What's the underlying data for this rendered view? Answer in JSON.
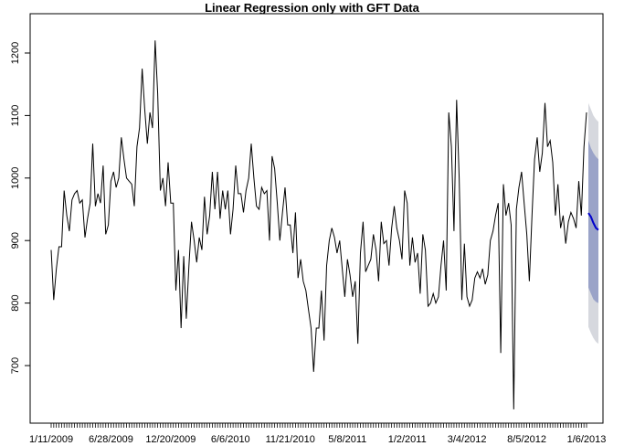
{
  "chart_data": {
    "type": "line",
    "title": "Linear Regression only with GFT Data",
    "xlabel": "",
    "ylabel": "",
    "ylim": [
      630,
      1220
    ],
    "y_ticks": [
      700,
      800,
      900,
      1000,
      1100,
      1200
    ],
    "x_tick_labels": [
      "1/11/2009",
      "6/28/2009",
      "12/20/2009",
      "6/6/2010",
      "11/21/2010",
      "5/8/2011",
      "1/2/2011",
      "3/4/2012",
      "8/5/2012",
      "1/6/2013"
    ],
    "grid": false,
    "series": [
      {
        "kind": "observed",
        "color": "#000000",
        "values": [
          885,
          805,
          855,
          890,
          890,
          980,
          940,
          915,
          965,
          975,
          980,
          960,
          965,
          905,
          935,
          960,
          1055,
          955,
          975,
          960,
          1020,
          910,
          925,
          995,
          1010,
          985,
          1000,
          1065,
          1030,
          1000,
          995,
          990,
          955,
          1050,
          1080,
          1175,
          1110,
          1055,
          1105,
          1080,
          1220,
          1135,
          980,
          1000,
          955,
          1025,
          960,
          960,
          820,
          885,
          760,
          875,
          775,
          860,
          930,
          900,
          865,
          905,
          885,
          970,
          910,
          940,
          1010,
          950,
          1010,
          935,
          980,
          950,
          980,
          910,
          950,
          1020,
          975,
          975,
          945,
          980,
          1000,
          1055,
          1000,
          955,
          950,
          985,
          975,
          980,
          900,
          1035,
          1015,
          960,
          900,
          945,
          985,
          925,
          925,
          880,
          945,
          840,
          870,
          835,
          820,
          790,
          760,
          690,
          760,
          760,
          820,
          740,
          860,
          900,
          920,
          905,
          880,
          900,
          855,
          810,
          870,
          845,
          810,
          835,
          735,
          880,
          930,
          850,
          860,
          870,
          910,
          885,
          835,
          930,
          895,
          900,
          860,
          920,
          955,
          920,
          900,
          870,
          980,
          960,
          860,
          905,
          865,
          880,
          815,
          910,
          885,
          795,
          800,
          815,
          800,
          810,
          860,
          900,
          820,
          1105,
          1050,
          915,
          1125,
          1000,
          805,
          895,
          810,
          795,
          805,
          840,
          850,
          840,
          855,
          830,
          845,
          900,
          915,
          940,
          960,
          720,
          990,
          940,
          960,
          925,
          630,
          950,
          985,
          1010,
          960,
          910,
          835,
          940,
          1030,
          1065,
          1010,
          1040,
          1120,
          1050,
          1060,
          1025,
          940,
          990,
          920,
          940,
          895,
          930,
          945,
          935,
          920,
          995,
          940,
          1050,
          1105
        ]
      },
      {
        "kind": "forecast",
        "color": "#0000cc",
        "values": [
          944,
          938,
          928,
          920,
          917
        ]
      },
      {
        "kind": "interval-80",
        "color": "#9aa3c8",
        "upper": [
          1060,
          1048,
          1040,
          1034,
          1030
        ],
        "lower": [
          825,
          815,
          806,
          802,
          800
        ]
      },
      {
        "kind": "interval-95",
        "color": "#d6d8de",
        "upper": [
          1120,
          1110,
          1100,
          1094,
          1090
        ],
        "lower": [
          762,
          752,
          744,
          738,
          735
        ]
      }
    ]
  }
}
